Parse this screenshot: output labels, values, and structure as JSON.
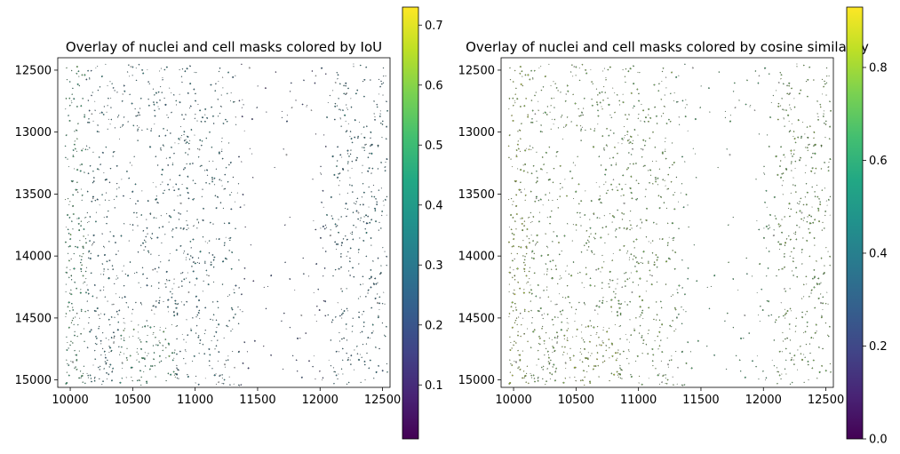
{
  "chart_data": [
    {
      "type": "scatter",
      "title": "Overlay of nuclei and cell masks colored by IoU",
      "xlim": [
        9900,
        12560
      ],
      "ylim": [
        15060,
        12400
      ],
      "y_inverted": true,
      "xticks": [
        10000,
        10500,
        11000,
        11500,
        12000,
        12500
      ],
      "yticks": [
        12500,
        13000,
        13500,
        14000,
        14500,
        15000
      ],
      "colormap": "viridis",
      "missing_color": "#cccccc",
      "colorbar": {
        "range": [
          0.01,
          0.73
        ],
        "ticks": [
          0.1,
          0.2,
          0.3,
          0.4,
          0.5,
          0.6,
          0.7
        ]
      },
      "grid": false,
      "seed": 7
    },
    {
      "type": "scatter",
      "title": "Overlay of nuclei and cell masks colored by cosine similarity",
      "xlim": [
        9900,
        12560
      ],
      "ylim": [
        15060,
        12400
      ],
      "y_inverted": true,
      "xticks": [
        10000,
        10500,
        11000,
        11500,
        12000,
        12500
      ],
      "yticks": [
        12500,
        13000,
        13500,
        14000,
        14500,
        15000
      ],
      "colormap": "viridis",
      "missing_color": "#cccccc",
      "colorbar": {
        "range": [
          0.0,
          0.93
        ],
        "ticks": [
          0.0,
          0.2,
          0.4,
          0.6,
          0.8
        ]
      },
      "grid": false,
      "seed": 7
    }
  ]
}
